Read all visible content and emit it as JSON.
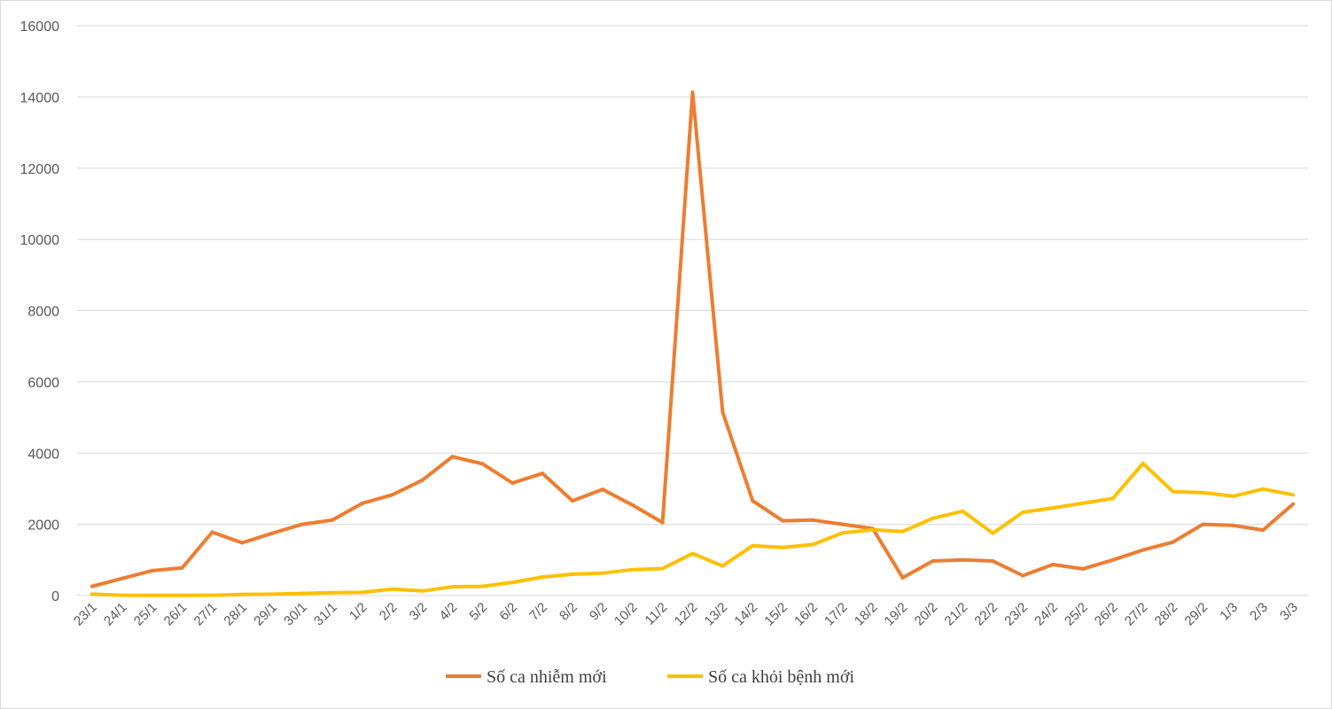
{
  "chart_data": {
    "type": "line",
    "title": "",
    "xlabel": "",
    "ylabel": "",
    "ylim": [
      0,
      16000
    ],
    "yticks": [
      0,
      2000,
      4000,
      6000,
      8000,
      10000,
      12000,
      14000,
      16000
    ],
    "grid": true,
    "legend_position": "bottom",
    "categories": [
      "23/1",
      "24/1",
      "25/1",
      "26/1",
      "27/1",
      "28/1",
      "29/1",
      "30/1",
      "31/1",
      "1/2",
      "2/2",
      "3/2",
      "4/2",
      "5/2",
      "6/2",
      "7/2",
      "8/2",
      "9/2",
      "10/2",
      "11/2",
      "12/2",
      "13/2",
      "14/2",
      "15/2",
      "16/2",
      "17/2",
      "18/2",
      "19/2",
      "20/2",
      "21/2",
      "22/2",
      "23/2",
      "24/2",
      "25/2",
      "26/2",
      "27/2",
      "28/2",
      "29/2",
      "1/3",
      "2/3",
      "3/3"
    ],
    "series": [
      {
        "name": "Số ca nhiễm mới",
        "color": "#ED7D31",
        "values": [
          260,
          480,
          700,
          780,
          1780,
          1480,
          1750,
          2000,
          2120,
          2590,
          2830,
          3240,
          3900,
          3700,
          3160,
          3430,
          2660,
          2980,
          2540,
          2050,
          14130,
          5150,
          2660,
          2100,
          2120,
          2000,
          1880,
          500,
          970,
          1000,
          970,
          560,
          870,
          750,
          1000,
          1280,
          1500,
          2000,
          1970,
          1840,
          2570
        ]
      },
      {
        "name": "Số ca khỏi bệnh mới",
        "color": "#FFC000",
        "values": [
          40,
          10,
          5,
          5,
          10,
          30,
          40,
          60,
          80,
          90,
          180,
          130,
          250,
          260,
          370,
          520,
          600,
          630,
          730,
          760,
          1180,
          830,
          1400,
          1350,
          1430,
          1760,
          1850,
          1800,
          2170,
          2370,
          1750,
          2340,
          2460,
          2590,
          2730,
          3710,
          2920,
          2890,
          2790,
          2990,
          2830
        ]
      }
    ]
  }
}
